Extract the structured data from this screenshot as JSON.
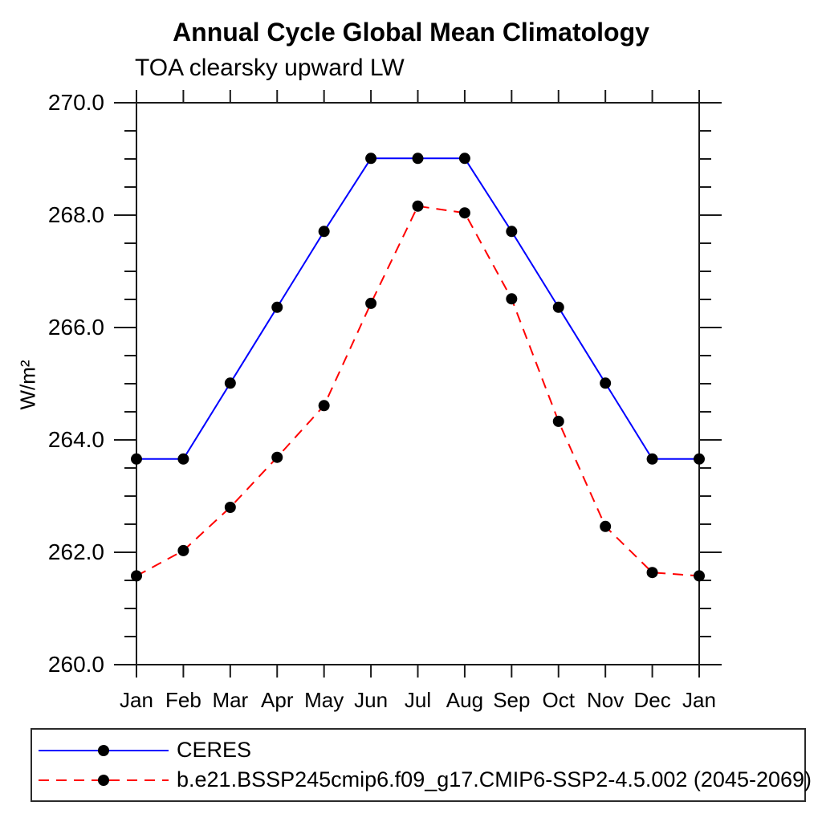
{
  "chart_data": {
    "type": "line",
    "title": "Annual Cycle Global Mean Climatology",
    "subtitle": "TOA clearsky upward LW",
    "ylabel": "W/m²",
    "xlabel": "",
    "x_tick_labels": [
      "Jan",
      "Feb",
      "Mar",
      "Apr",
      "May",
      "Jun",
      "Jul",
      "Aug",
      "Sep",
      "Oct",
      "Nov",
      "Dec",
      "Jan"
    ],
    "ylim": [
      260.0,
      270.0
    ],
    "y_major_ticks": [
      260.0,
      262.0,
      264.0,
      266.0,
      268.0,
      270.0
    ],
    "y_major_tick_labels": [
      "260.0",
      "262.0",
      "264.0",
      "266.0",
      "268.0",
      "270.0"
    ],
    "y_minor_tick_step": 0.5,
    "grid": false,
    "legend_position": "bottom",
    "axis_color": "#1a1a1a",
    "marker": "filled-circle",
    "marker_color": "#000000",
    "series": [
      {
        "name": "CERES",
        "color": "#0000ff",
        "line_style": "solid",
        "values": [
          263.66,
          263.66,
          265.01,
          266.36,
          267.71,
          269.01,
          269.01,
          269.01,
          267.71,
          266.36,
          265.01,
          263.66,
          263.66
        ]
      },
      {
        "name": "b.e21.BSSP245cmip6.f09_g17.CMIP6-SSP2-4.5.002 (2045-2069)",
        "color": "#ff0000",
        "line_style": "dashed",
        "values": [
          261.58,
          262.03,
          262.8,
          263.69,
          264.61,
          266.43,
          268.16,
          268.04,
          266.51,
          264.33,
          262.46,
          261.64,
          261.58
        ]
      }
    ]
  }
}
